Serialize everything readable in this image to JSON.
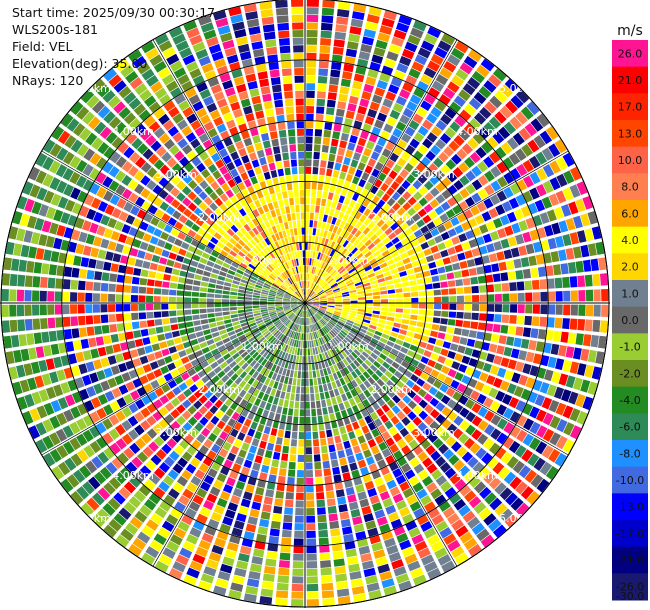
{
  "header": {
    "start_time": "Start time: 2025/09/30 00:30:17",
    "instrument": "WLS200s-181",
    "field": "Field: VEL",
    "elevation": "Elevation(deg): 35.00",
    "nrays": "NRays: 120"
  },
  "chart_data": {
    "type": "heatmap",
    "projection": "polar-ppi",
    "field": "VEL",
    "elevation_deg": 35.0,
    "n_rays": 120,
    "max_range_km": 5.0,
    "range_rings_km": [
      1.0,
      2.0,
      3.0,
      4.0,
      5.0
    ],
    "range_ring_labels": [
      "1.00km",
      "2.00km",
      "3.00km",
      "4.00km",
      "5.00km"
    ],
    "colorbar": {
      "unit": "m/s",
      "tick_labels": [
        "26.0",
        "21.0",
        "17.0",
        "13.0",
        "10.0",
        "8.0",
        "6.0",
        "4.0",
        "2.0",
        "1.0",
        "0.0",
        "-1.0",
        "-2.0",
        "-4.0",
        "-6.0",
        "-8.0",
        "-10.0",
        "-13.0",
        "-17.0",
        "-21.0",
        "-26.0",
        "-30.0"
      ],
      "colors": [
        "#ff1493",
        "#ff0000",
        "#ff2400",
        "#ff4500",
        "#ff6347",
        "#ff7f50",
        "#ffa500",
        "#ffff00",
        "#ffd700",
        "#708090",
        "#696969",
        "#9acd32",
        "#6b8e23",
        "#228b22",
        "#2e8b57",
        "#1e90ff",
        "#4169e1",
        "#0000ff",
        "#0000cd",
        "#000080",
        "#191970"
      ]
    }
  }
}
